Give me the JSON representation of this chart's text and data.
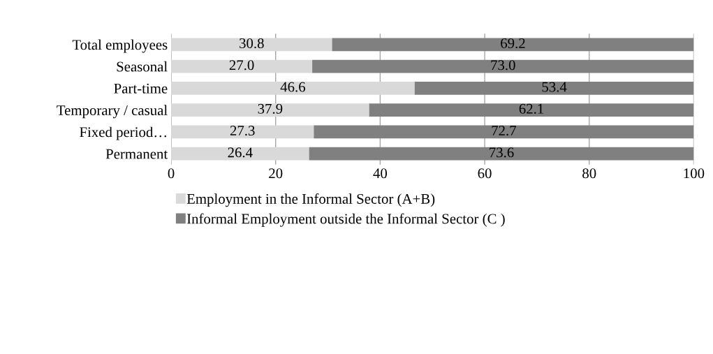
{
  "chart_data": {
    "type": "bar",
    "orientation": "horizontal",
    "stacked": true,
    "categories": [
      "Total employees",
      "Seasonal",
      "Part-time",
      "Temporary / casual",
      "Fixed period…",
      "Permanent"
    ],
    "series": [
      {
        "name": "Employment in the Informal Sector (A+B)",
        "color": "#d9d9d9",
        "values": [
          30.8,
          27.0,
          46.6,
          37.9,
          27.3,
          26.4
        ],
        "value_labels": [
          "30.8",
          "27.0",
          "46.6",
          "37.9",
          "27.3",
          "26.4"
        ]
      },
      {
        "name": "Informal Employment outside the Informal Sector (C )",
        "color": "#808080",
        "values": [
          69.2,
          73.0,
          53.4,
          62.1,
          72.7,
          73.6
        ],
        "value_labels": [
          "69.2",
          "73.0",
          "53.4",
          "62.1",
          "72.7",
          "73.6"
        ]
      }
    ],
    "xlim": [
      0,
      100
    ],
    "xticks": [
      0,
      20,
      40,
      60,
      80,
      100
    ],
    "grid": "x",
    "legend": "bottom"
  }
}
